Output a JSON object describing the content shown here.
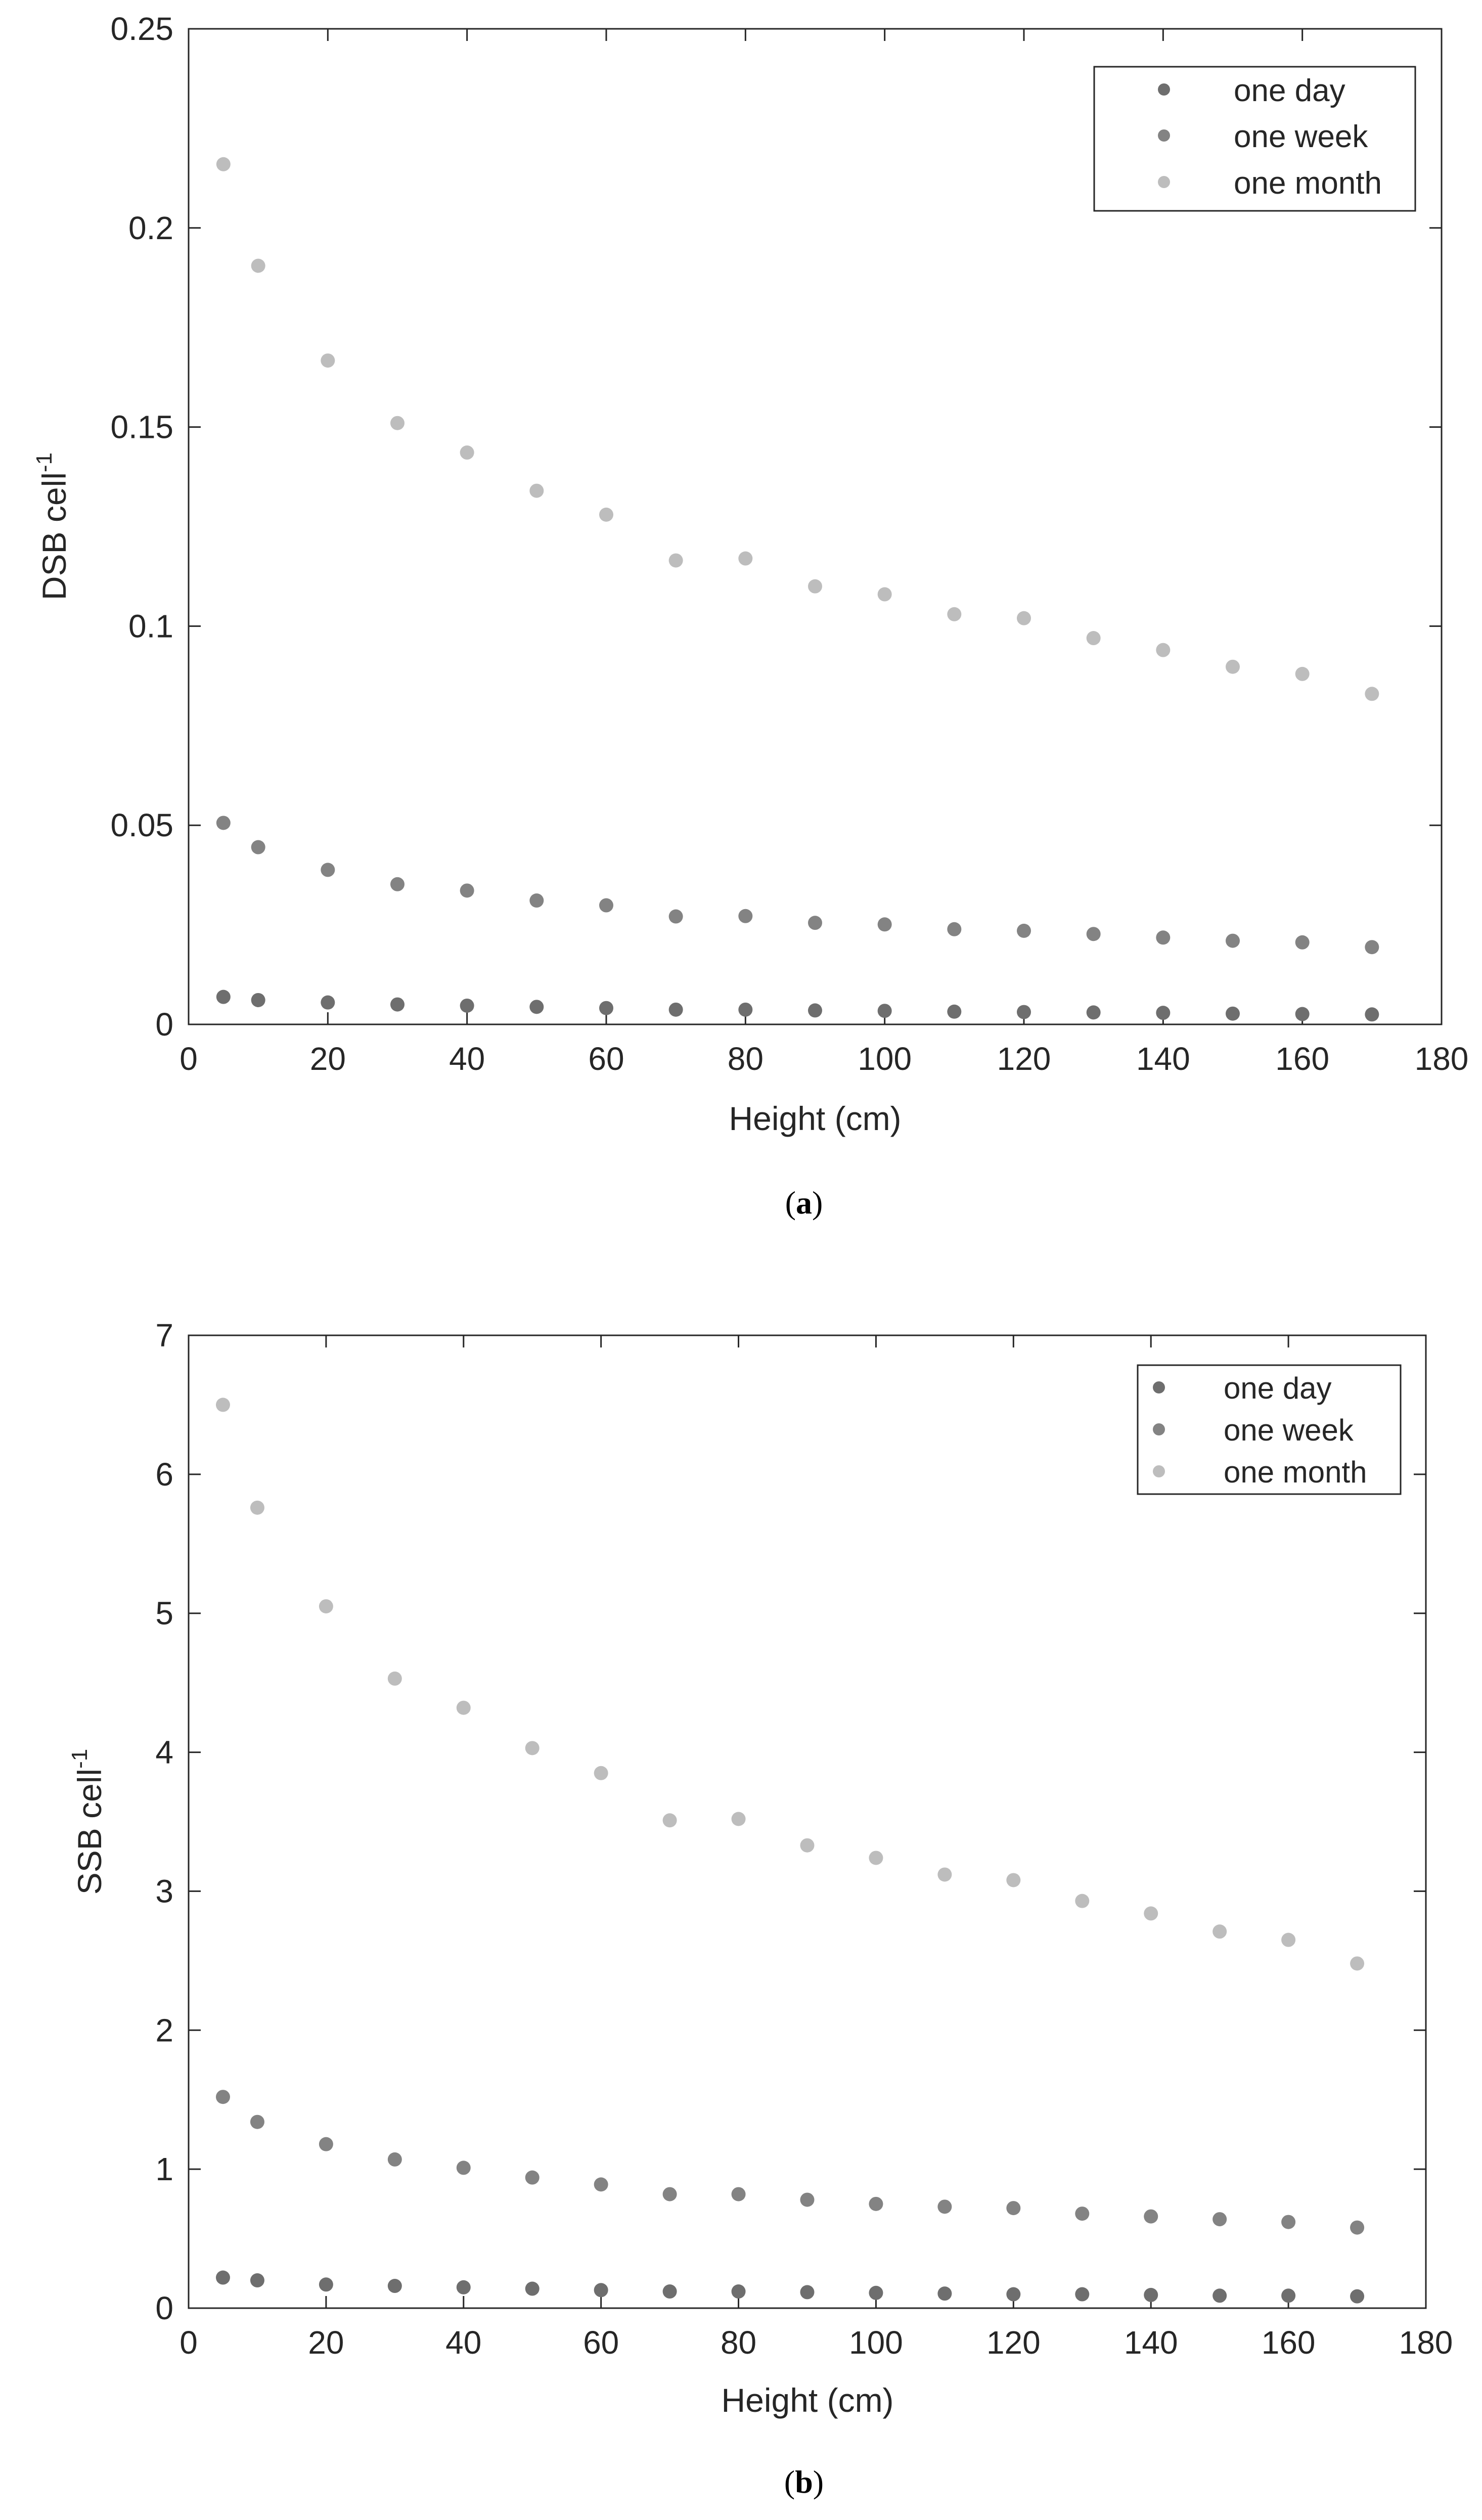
{
  "figure": {
    "panels": [
      {
        "caption_open": "(",
        "caption_letter": "a",
        "caption_close": ")"
      },
      {
        "caption_open": "(",
        "caption_letter": "b",
        "caption_close": ")"
      }
    ]
  },
  "colors": {
    "one_day": "#6e6e6e",
    "one_week": "#838383",
    "one_month": "#bdbdbd",
    "axis": "#262626",
    "background": "#ffffff"
  },
  "chart_data": [
    {
      "type": "scatter",
      "title": "",
      "caption": "(a)",
      "xlabel": "Height (cm)",
      "ylabel": "DSB cell",
      "ylabel_superscript": "-1",
      "xlim": [
        0,
        180
      ],
      "ylim": [
        0,
        0.25
      ],
      "xticks": [
        0,
        20,
        40,
        60,
        80,
        100,
        120,
        140,
        160,
        180
      ],
      "yticks": [
        0,
        0.05,
        0.1,
        0.15,
        0.2,
        0.25
      ],
      "ytick_labels": [
        "0",
        "0.05",
        "0.1",
        "0.15",
        "0.2",
        "0.25"
      ],
      "grid": false,
      "legend_position": "upper right",
      "x": [
        5,
        10,
        20,
        30,
        40,
        50,
        60,
        70,
        80,
        90,
        100,
        110,
        120,
        130,
        140,
        150,
        160,
        170
      ],
      "series": [
        {
          "name": "one day",
          "color_key": "one_day",
          "values": [
            0.0069,
            0.0061,
            0.0055,
            0.005,
            0.0047,
            0.0044,
            0.0041,
            0.0037,
            0.0037,
            0.0035,
            0.0034,
            0.0032,
            0.0031,
            0.003,
            0.0029,
            0.0027,
            0.0026,
            0.0025
          ]
        },
        {
          "name": "one week",
          "color_key": "one_week",
          "values": [
            0.0506,
            0.0445,
            0.0388,
            0.0352,
            0.0336,
            0.0311,
            0.0299,
            0.0271,
            0.0272,
            0.0255,
            0.0251,
            0.0239,
            0.0235,
            0.0227,
            0.0218,
            0.021,
            0.0206,
            0.0194
          ]
        },
        {
          "name": "one month",
          "color_key": "one_month",
          "values": [
            0.216,
            0.1905,
            0.1667,
            0.151,
            0.1436,
            0.134,
            0.128,
            0.1165,
            0.117,
            0.11,
            0.108,
            0.103,
            0.102,
            0.097,
            0.094,
            0.0898,
            0.088,
            0.083
          ]
        }
      ]
    },
    {
      "type": "scatter",
      "title": "",
      "caption": "(b)",
      "xlabel": "Height (cm)",
      "ylabel": "SSB cell",
      "ylabel_superscript": "-1",
      "xlim": [
        0,
        180
      ],
      "ylim": [
        0,
        7
      ],
      "xticks": [
        0,
        20,
        40,
        60,
        80,
        100,
        120,
        140,
        160,
        180
      ],
      "yticks": [
        0,
        1,
        2,
        3,
        4,
        5,
        6,
        7
      ],
      "ytick_labels": [
        "0",
        "1",
        "2",
        "3",
        "4",
        "5",
        "6",
        "7"
      ],
      "grid": false,
      "legend_position": "upper right",
      "x": [
        5,
        10,
        20,
        30,
        40,
        50,
        60,
        70,
        80,
        90,
        100,
        110,
        120,
        130,
        140,
        150,
        160,
        170
      ],
      "series": [
        {
          "name": "one day",
          "color_key": "one_day",
          "values": [
            0.22,
            0.2,
            0.17,
            0.16,
            0.15,
            0.14,
            0.13,
            0.12,
            0.12,
            0.115,
            0.11,
            0.105,
            0.1,
            0.1,
            0.095,
            0.09,
            0.09,
            0.085
          ]
        },
        {
          "name": "one week",
          "color_key": "one_week",
          "values": [
            1.52,
            1.34,
            1.18,
            1.07,
            1.01,
            0.94,
            0.89,
            0.82,
            0.82,
            0.78,
            0.75,
            0.73,
            0.72,
            0.68,
            0.66,
            0.64,
            0.62,
            0.58
          ]
        },
        {
          "name": "one month",
          "color_key": "one_month",
          "values": [
            6.5,
            5.76,
            5.05,
            4.53,
            4.32,
            4.03,
            3.85,
            3.51,
            3.52,
            3.33,
            3.24,
            3.12,
            3.08,
            2.93,
            2.84,
            2.71,
            2.65,
            2.48
          ]
        }
      ]
    }
  ]
}
